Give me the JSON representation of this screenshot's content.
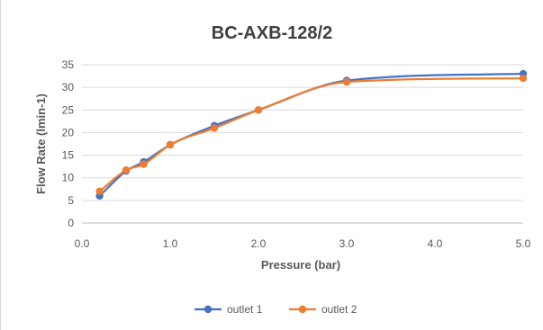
{
  "chart_data": {
    "type": "line",
    "title": "BC-AXB-128/2",
    "xlabel": "Pressure (bar)",
    "ylabel": "Flow Rate (lmin-1)",
    "xlim": [
      0,
      5
    ],
    "ylim": [
      0,
      35
    ],
    "x_ticks": [
      "0.0",
      "1.0",
      "2.0",
      "3.0",
      "4.0",
      "5.0"
    ],
    "y_ticks": [
      "0",
      "5",
      "10",
      "15",
      "20",
      "25",
      "30",
      "35"
    ],
    "grid": "horizontal",
    "legend_position": "bottom",
    "series": [
      {
        "name": "outlet 1",
        "color": "#4472c4",
        "points": [
          [
            0.2,
            6.0
          ],
          [
            0.5,
            11.5
          ],
          [
            0.7,
            13.5
          ],
          [
            1.0,
            17.3
          ],
          [
            1.5,
            21.5
          ],
          [
            2.0,
            25.0
          ],
          [
            3.0,
            31.5
          ],
          [
            5.0,
            33.0
          ]
        ]
      },
      {
        "name": "outlet 2",
        "color": "#ed7d31",
        "points": [
          [
            0.2,
            7.0
          ],
          [
            0.5,
            11.7
          ],
          [
            0.7,
            13.0
          ],
          [
            1.0,
            17.3
          ],
          [
            1.5,
            21.0
          ],
          [
            2.0,
            25.0
          ],
          [
            3.0,
            31.2
          ],
          [
            5.0,
            32.0
          ]
        ]
      }
    ]
  }
}
